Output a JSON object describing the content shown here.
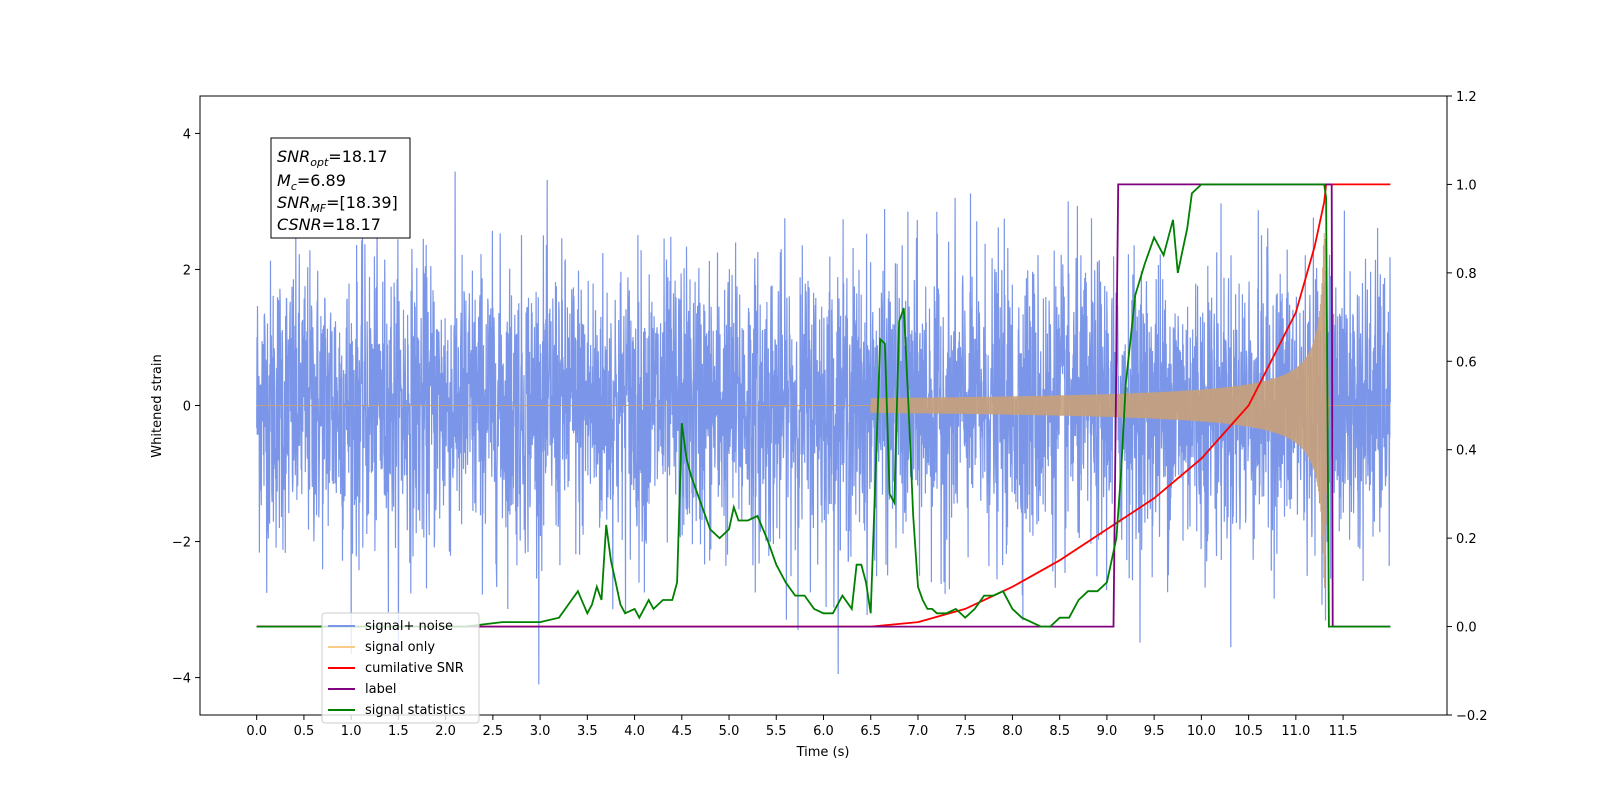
{
  "chart_data": {
    "type": "line",
    "xlabel": "Time (s)",
    "ylabel": "Whitened strain",
    "xlim": [
      -0.6,
      12.6
    ],
    "ylim": [
      -4.55,
      4.55
    ],
    "y2lim": [
      -0.2,
      1.2
    ],
    "x_ticks": [
      "0.0",
      "0.5",
      "1.0",
      "1.5",
      "2.0",
      "2.5",
      "3.0",
      "3.5",
      "4.0",
      "4.5",
      "5.0",
      "5.5",
      "6.0",
      "6.5",
      "7.0",
      "7.5",
      "8.0",
      "8.5",
      "9.0",
      "9.5",
      "10.0",
      "10.5",
      "11.0",
      "11.5"
    ],
    "y_ticks": [
      "−4",
      "−2",
      "0",
      "2",
      "4"
    ],
    "y2_ticks": [
      "−0.2",
      "0.0",
      "0.2",
      "0.4",
      "0.6",
      "0.8",
      "1.0",
      "1.2"
    ],
    "annotations": [
      {
        "var": "SNR",
        "sub": "opt",
        "value": "=18.17"
      },
      {
        "var": "M",
        "sub": "c",
        "value": "=6.89"
      },
      {
        "var": "SNR",
        "sub": "MF",
        "value": "=[18.39]"
      },
      {
        "var": "CSNR",
        "sub": "",
        "value": "=18.17"
      }
    ],
    "legend": {
      "location": "lower-left",
      "entries": [
        {
          "label": "signal+ noise",
          "color": "#7b96e8"
        },
        {
          "label": "signal only",
          "color": "#fbc98a"
        },
        {
          "label": "cumilative SNR",
          "color": "#ff0000"
        },
        {
          "label": "label",
          "color": "#800080"
        },
        {
          "label": "signal statistics",
          "color": "#008000"
        }
      ]
    },
    "series": [
      {
        "name": "signal+ noise",
        "axis": "left",
        "color": "#7b96e8",
        "style": "noise",
        "x_range": [
          0.0,
          12.0
        ],
        "amplitude_range": [
          -4.1,
          4.1
        ]
      },
      {
        "name": "signal only",
        "axis": "left",
        "color": "#c8a07a",
        "style": "chirp",
        "start": 6.5,
        "merger": 11.3,
        "end": 11.35,
        "peak_amplitude": 2.9
      },
      {
        "name": "cumilative SNR",
        "axis": "right",
        "color": "#ff0000",
        "x": [
          0.0,
          6.5,
          7.0,
          7.5,
          8.0,
          8.5,
          9.0,
          9.5,
          10.0,
          10.5,
          11.0,
          11.2,
          11.3,
          11.32,
          12.0
        ],
        "y": [
          0.0,
          0.0,
          0.01,
          0.04,
          0.09,
          0.15,
          0.22,
          0.29,
          0.38,
          0.5,
          0.71,
          0.86,
          0.96,
          1.0,
          1.0
        ]
      },
      {
        "name": "label",
        "axis": "right",
        "color": "#800080",
        "x": [
          0.0,
          9.07,
          9.12,
          11.38,
          11.39,
          12.0
        ],
        "y": [
          0.0,
          0.0,
          1.0,
          1.0,
          0.0,
          0.0
        ]
      },
      {
        "name": "signal statistics",
        "axis": "right",
        "color": "#008000",
        "x": [
          0.0,
          2.2,
          2.6,
          3.0,
          3.2,
          3.3,
          3.4,
          3.5,
          3.55,
          3.6,
          3.65,
          3.7,
          3.75,
          3.8,
          3.85,
          3.9,
          4.0,
          4.05,
          4.1,
          4.15,
          4.2,
          4.3,
          4.4,
          4.45,
          4.5,
          4.55,
          4.6,
          4.7,
          4.8,
          4.9,
          5.0,
          5.05,
          5.1,
          5.2,
          5.3,
          5.4,
          5.5,
          5.6,
          5.7,
          5.8,
          5.9,
          6.0,
          6.1,
          6.2,
          6.3,
          6.35,
          6.4,
          6.45,
          6.5,
          6.6,
          6.65,
          6.7,
          6.75,
          6.8,
          6.85,
          6.9,
          6.95,
          7.0,
          7.05,
          7.1,
          7.15,
          7.2,
          7.3,
          7.4,
          7.5,
          7.6,
          7.7,
          7.8,
          7.9,
          8.0,
          8.1,
          8.2,
          8.3,
          8.4,
          8.5,
          8.6,
          8.7,
          8.8,
          8.9,
          9.0,
          9.1,
          9.15,
          9.2,
          9.3,
          9.4,
          9.5,
          9.6,
          9.7,
          9.75,
          9.8,
          9.85,
          9.9,
          10.0,
          10.2,
          10.5,
          11.0,
          11.3,
          11.32,
          11.35,
          11.4,
          12.0
        ],
        "y": [
          0.0,
          0.0,
          0.01,
          0.01,
          0.02,
          0.05,
          0.08,
          0.03,
          0.05,
          0.09,
          0.06,
          0.23,
          0.15,
          0.1,
          0.05,
          0.03,
          0.04,
          0.02,
          0.04,
          0.06,
          0.04,
          0.06,
          0.06,
          0.1,
          0.46,
          0.38,
          0.34,
          0.28,
          0.22,
          0.2,
          0.22,
          0.27,
          0.24,
          0.24,
          0.25,
          0.2,
          0.14,
          0.1,
          0.07,
          0.07,
          0.04,
          0.03,
          0.03,
          0.07,
          0.04,
          0.14,
          0.14,
          0.1,
          0.03,
          0.65,
          0.64,
          0.3,
          0.28,
          0.69,
          0.72,
          0.5,
          0.25,
          0.09,
          0.06,
          0.04,
          0.04,
          0.03,
          0.03,
          0.04,
          0.02,
          0.04,
          0.07,
          0.07,
          0.08,
          0.04,
          0.02,
          0.01,
          0.0,
          0.0,
          0.02,
          0.02,
          0.06,
          0.08,
          0.08,
          0.1,
          0.2,
          0.35,
          0.55,
          0.75,
          0.82,
          0.88,
          0.84,
          0.92,
          0.8,
          0.85,
          0.9,
          0.98,
          1.0,
          1.0,
          1.0,
          1.0,
          1.0,
          0.97,
          0.0,
          0.0,
          0.0
        ]
      }
    ]
  }
}
